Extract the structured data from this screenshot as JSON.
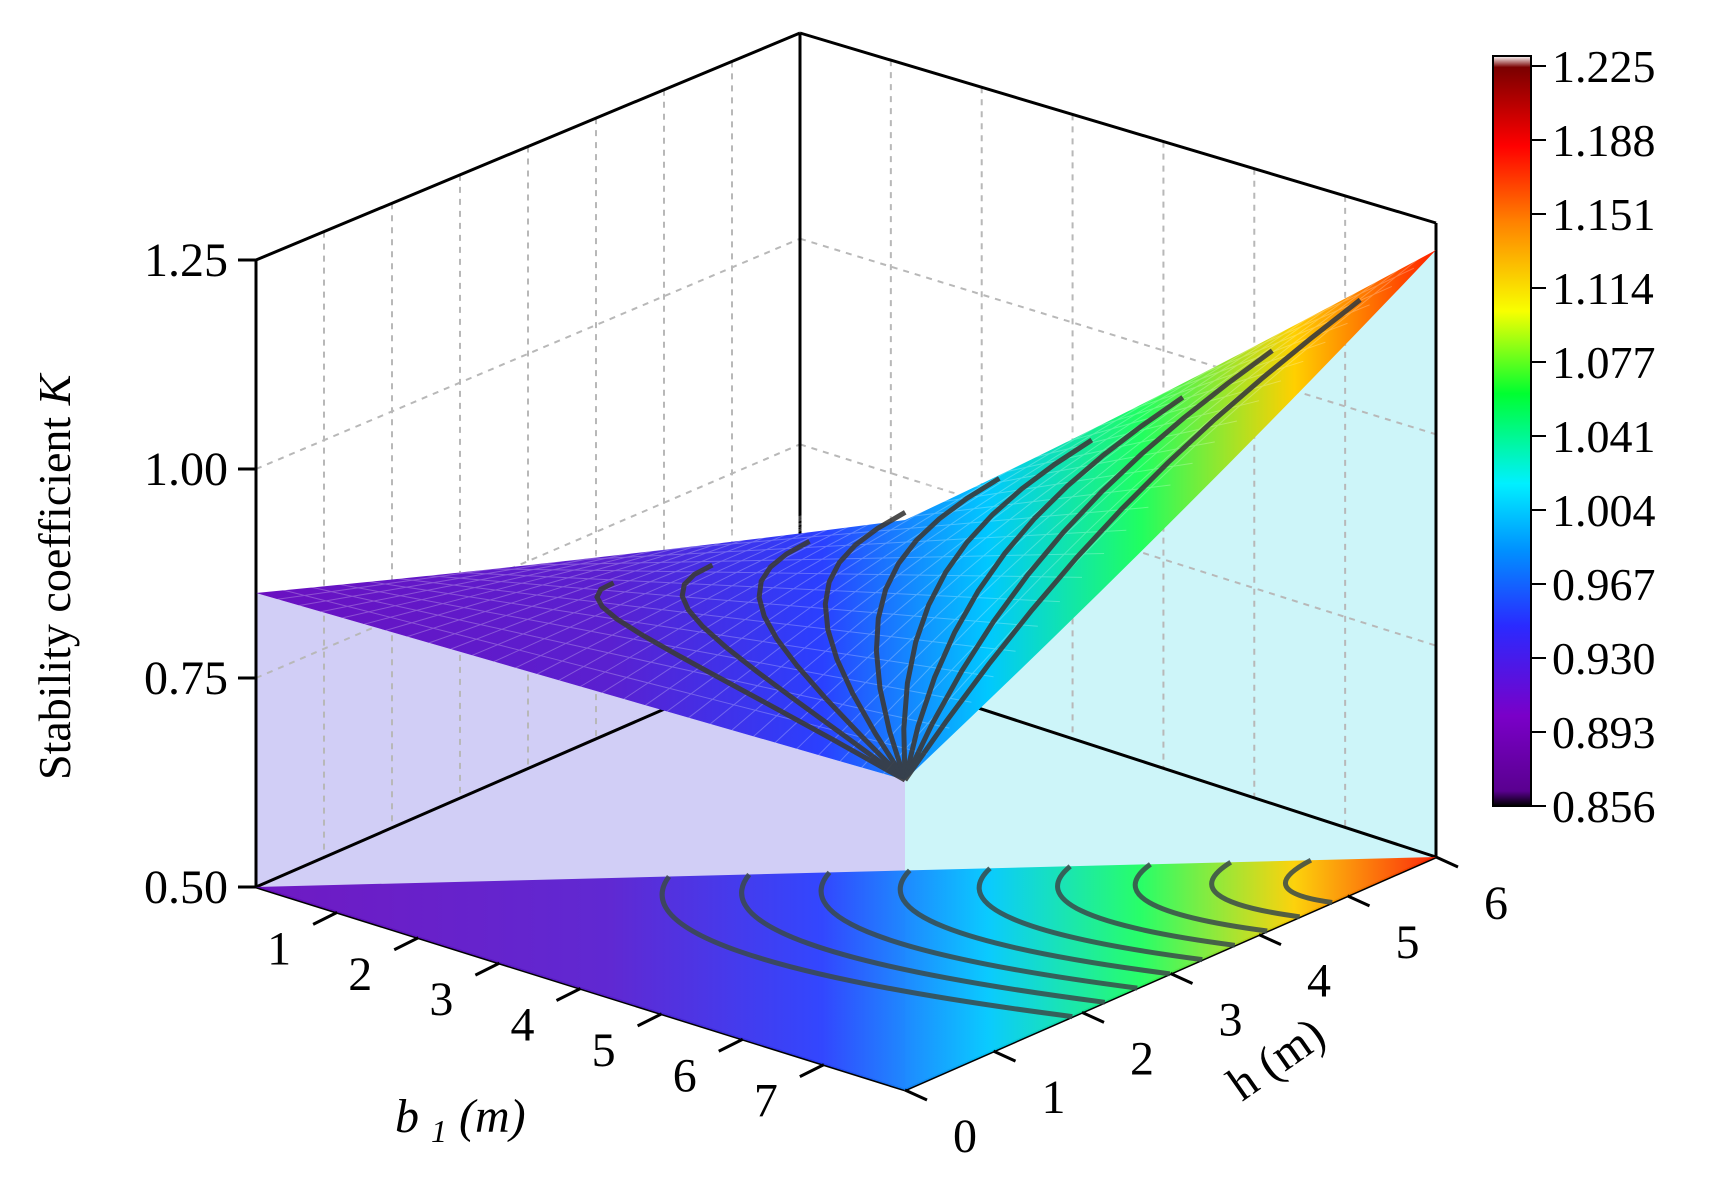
{
  "chart_data": {
    "type": "surface3d",
    "title": "",
    "zlabel": "Stability coefficient",
    "zlabel_symbol": "K",
    "xlabel": "b",
    "xlabel_sub": "1",
    "xlabel_unit": " (m)",
    "ylabel": "h (m)",
    "x_ticks": [
      "1",
      "2",
      "3",
      "4",
      "5",
      "6",
      "7"
    ],
    "y_ticks": [
      "0",
      "1",
      "2",
      "3",
      "4",
      "5",
      "6"
    ],
    "z_ticks": [
      "0.50",
      "0.75",
      "1.00",
      "1.25"
    ],
    "xlim": [
      0,
      8
    ],
    "ylim": [
      0,
      6
    ],
    "zlim": [
      0.5,
      1.25
    ],
    "grid": true,
    "surface": {
      "description_values": {
        "K_at_b8_h0": 0.856,
        "K_at_b0_h0": 0.856,
        "K_at_b0_h6": 1.225
      }
    },
    "contour_levels": [
      0.893,
      0.93,
      0.967,
      1.004,
      1.041,
      1.077,
      1.114,
      1.151,
      1.188
    ],
    "colorbar": {
      "labels": [
        "1.225",
        "1.188",
        "1.151",
        "1.114",
        "1.077",
        "1.041",
        "1.004",
        "0.967",
        "0.930",
        "0.893",
        "0.856"
      ],
      "min": 0.856,
      "max": 1.225,
      "colormap": [
        "#000000",
        "#4b0082",
        "#7a00c8",
        "#2020ff",
        "#00a0ff",
        "#00ffff",
        "#00ff40",
        "#ffff00",
        "#ff8000",
        "#ff0000",
        "#8b0000",
        "#ffffff"
      ]
    }
  }
}
